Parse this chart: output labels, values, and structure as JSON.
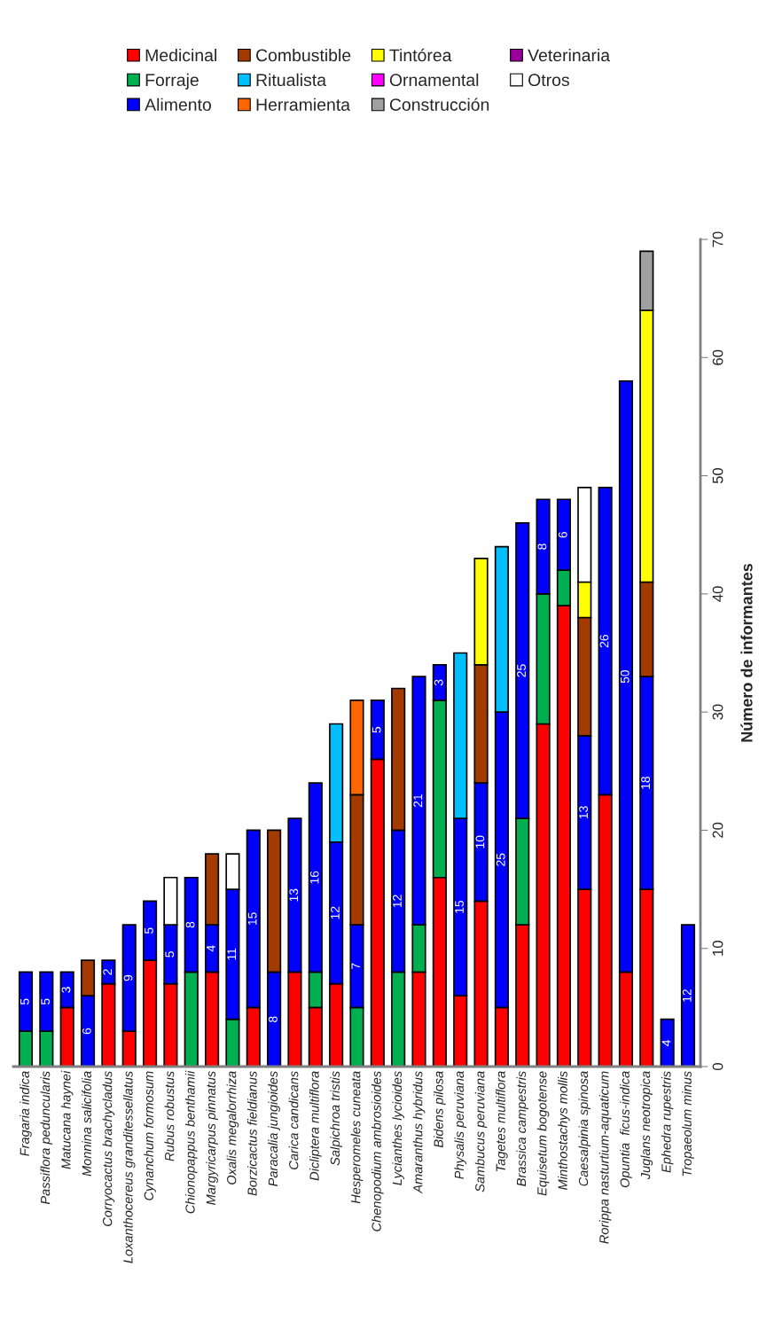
{
  "chart_data": {
    "type": "bar",
    "stacked": true,
    "ylabel": "Número de informantes",
    "ylim": [
      0,
      70
    ],
    "yticks": [
      0,
      10,
      20,
      30,
      40,
      50,
      60,
      70
    ],
    "grid": false,
    "legend": "top right",
    "categories": [
      "Fragaria indica",
      "Passiflora peduncularis",
      "Matucana haynei",
      "Monnina salicifolia",
      "Corryocactus brachycladus",
      "Loxanthocereus granditessellatus",
      "Cynanchum formosum",
      "Rubus robustus",
      "Chionopappus benthamii",
      "Margyricarpus pinnatus",
      "Oxalis megalorrhiza",
      "Borzicactus fieldianus",
      "Paracalia jungioides",
      "Carica candicans",
      "Dicliptera multiflora",
      "Salpichroa tristis",
      "Hesperomeles cuneata",
      "Chenopodium ambrosioides",
      "Lycianthes lycioides",
      "Amaranthus hybridus",
      "Bidens pilosa",
      "Physalis peruviana",
      "Sambucus peruviana",
      "Tagetes multiflora",
      "Brassica campestris",
      "Equisetum bogotense",
      "Minthostachys mollis",
      "Caesalpinia spinosa",
      "Rorippa nasturtium-aquaticum",
      "Opuntia  ficus-indica",
      "Juglans neotropica",
      "Ephedra rupestris",
      "Tropaeolum minus"
    ],
    "series": [
      {
        "name": "Medicinal",
        "color": "#ff0000",
        "values": [
          null,
          null,
          5,
          null,
          7,
          3,
          9,
          7,
          null,
          8,
          null,
          5,
          null,
          8,
          5,
          7,
          null,
          26,
          null,
          8,
          16,
          6,
          14,
          5,
          12,
          29,
          39,
          15,
          23,
          8,
          15,
          null,
          null
        ]
      },
      {
        "name": "Forraje",
        "color": "#00b050",
        "values": [
          3,
          3,
          null,
          null,
          null,
          null,
          null,
          null,
          8,
          null,
          4,
          null,
          null,
          null,
          3,
          null,
          5,
          null,
          8,
          4,
          15,
          null,
          null,
          null,
          9,
          11,
          3,
          null,
          null,
          null,
          null,
          null,
          null
        ]
      },
      {
        "name": "Alimento",
        "color": "#0000ff",
        "values": [
          5,
          5,
          3,
          6,
          2,
          9,
          5,
          5,
          8,
          4,
          11,
          15,
          8,
          13,
          16,
          12,
          7,
          5,
          12,
          21,
          3,
          15,
          10,
          25,
          25,
          8,
          6,
          13,
          26,
          50,
          18,
          4,
          12
        ],
        "value_labels": [
          "5",
          "5",
          "3",
          "6",
          "2",
          "9",
          "5",
          "5",
          "8",
          "4",
          "11",
          "15",
          "8",
          "13",
          "16",
          "12",
          "7",
          "5",
          "12",
          "21",
          "3",
          "15",
          "10",
          "25",
          "25",
          "8",
          "6",
          "13",
          "26",
          "50",
          "18",
          "4",
          "12"
        ]
      },
      {
        "name": "Combustible",
        "color": "#a33a00",
        "values": [
          null,
          null,
          null,
          3,
          null,
          null,
          null,
          null,
          null,
          6,
          null,
          null,
          12,
          null,
          null,
          null,
          11,
          null,
          12,
          null,
          null,
          null,
          10,
          null,
          null,
          null,
          null,
          10,
          null,
          null,
          8,
          null,
          null
        ]
      },
      {
        "name": "Ritualista",
        "color": "#00bfff",
        "values": [
          null,
          null,
          null,
          null,
          null,
          null,
          null,
          null,
          null,
          null,
          null,
          null,
          null,
          null,
          null,
          10,
          null,
          null,
          null,
          null,
          null,
          14,
          null,
          14,
          null,
          null,
          null,
          null,
          null,
          null,
          null,
          null,
          null
        ]
      },
      {
        "name": "Herramienta",
        "color": "#ff6600",
        "values": [
          null,
          null,
          null,
          null,
          null,
          null,
          null,
          null,
          null,
          null,
          null,
          null,
          null,
          null,
          null,
          null,
          8,
          null,
          null,
          null,
          null,
          null,
          null,
          null,
          null,
          null,
          null,
          null,
          null,
          null,
          null,
          null,
          null
        ]
      },
      {
        "name": "Tintórea",
        "color": "#ffff00",
        "values": [
          null,
          null,
          null,
          null,
          null,
          null,
          null,
          null,
          null,
          null,
          null,
          null,
          null,
          null,
          null,
          null,
          null,
          null,
          null,
          null,
          null,
          null,
          9,
          null,
          null,
          null,
          null,
          3,
          null,
          null,
          23,
          null,
          null
        ]
      },
      {
        "name": "Ornamental",
        "color": "#ff00ff",
        "values": [
          null,
          null,
          null,
          null,
          null,
          null,
          null,
          null,
          null,
          null,
          null,
          null,
          null,
          null,
          null,
          null,
          null,
          null,
          null,
          null,
          null,
          null,
          null,
          null,
          null,
          null,
          null,
          null,
          null,
          null,
          null,
          null,
          null
        ]
      },
      {
        "name": "Construcción",
        "color": "#a0a0a0",
        "values": [
          null,
          null,
          null,
          null,
          null,
          null,
          null,
          null,
          null,
          null,
          null,
          null,
          null,
          null,
          null,
          null,
          null,
          null,
          null,
          null,
          null,
          null,
          null,
          null,
          null,
          null,
          null,
          null,
          null,
          null,
          5,
          null,
          null
        ]
      },
      {
        "name": "Veterinaria",
        "color": "#990099",
        "values": [
          null,
          null,
          null,
          null,
          null,
          null,
          null,
          null,
          null,
          null,
          null,
          null,
          null,
          null,
          null,
          null,
          null,
          null,
          null,
          null,
          null,
          null,
          null,
          null,
          null,
          null,
          null,
          null,
          null,
          null,
          null,
          null,
          null
        ]
      },
      {
        "name": "Otros",
        "color": "#ffffff",
        "values": [
          null,
          null,
          null,
          null,
          null,
          null,
          null,
          4,
          null,
          null,
          3,
          null,
          null,
          null,
          null,
          null,
          null,
          null,
          null,
          null,
          null,
          null,
          null,
          null,
          null,
          null,
          null,
          8,
          null,
          null,
          null,
          null,
          null
        ]
      }
    ]
  }
}
